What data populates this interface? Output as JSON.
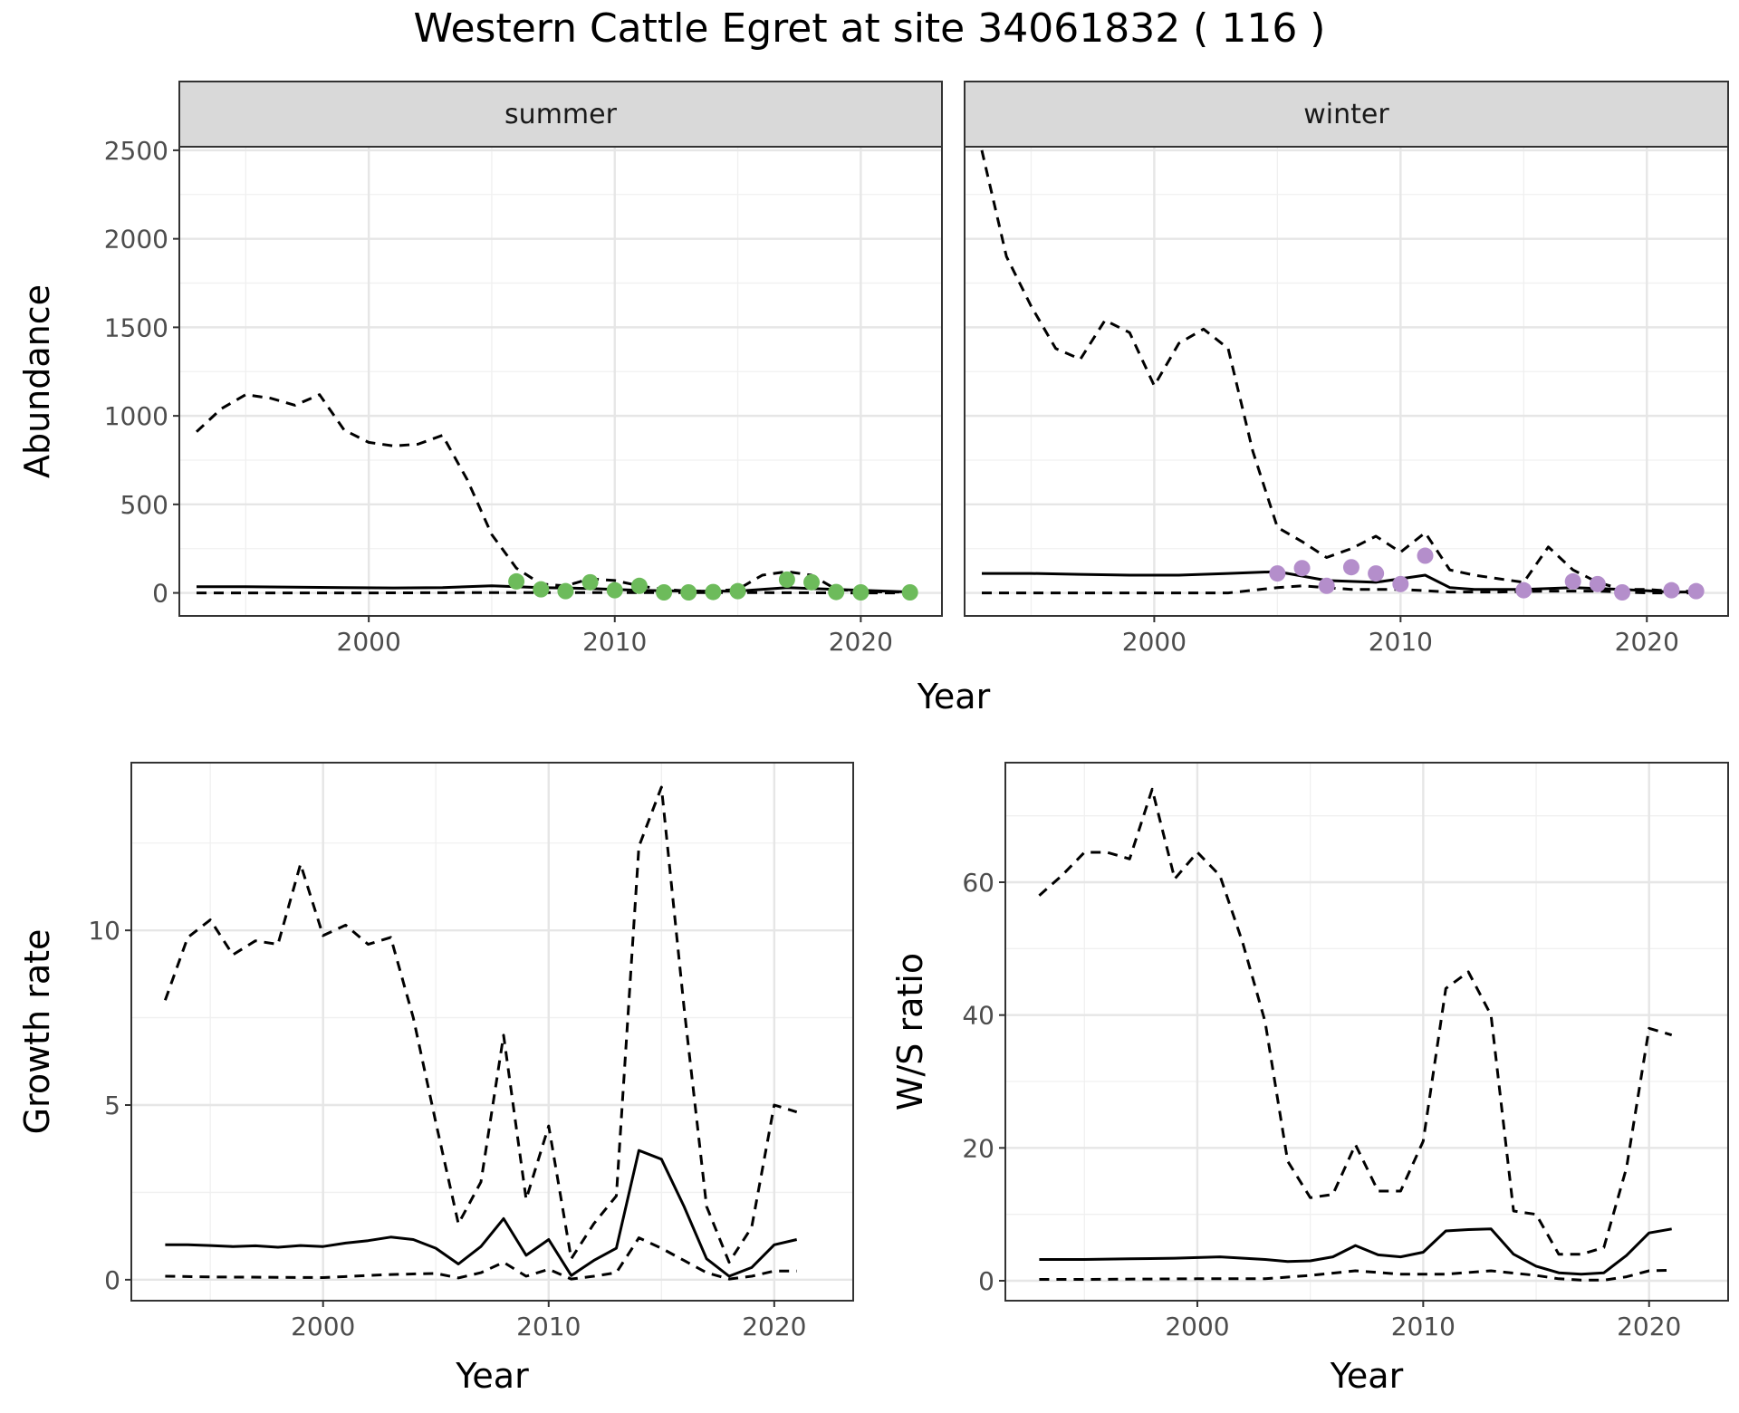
{
  "title": "Western Cattle Egret at site 34061832 ( 116 )",
  "chart_data": [
    {
      "id": "abundance",
      "type": "line",
      "ylabel": "Abundance",
      "xlabel": "Year",
      "xlim": [
        1992.3,
        2023.3
      ],
      "ylim": [
        -130,
        2520
      ],
      "xticks": [
        2000,
        2010,
        2020
      ],
      "yticks": [
        0,
        500,
        1000,
        1500,
        2000,
        2500
      ],
      "panels": [
        {
          "strip": "summer",
          "point_color": "#6dbb5b",
          "median": {
            "x": [
              1993,
              1995,
              1997,
              1999,
              2001,
              2003,
              2005,
              2007,
              2009,
              2011,
              2013,
              2015,
              2017,
              2019,
              2021,
              2022
            ],
            "y": [
              35,
              35,
              32,
              30,
              28,
              30,
              40,
              30,
              25,
              15,
              10,
              10,
              30,
              20,
              10,
              5
            ]
          },
          "upper": {
            "x": [
              1993,
              1994,
              1995,
              1996,
              1997,
              1998,
              1999,
              2000,
              2001,
              2002,
              2003,
              2004,
              2005,
              2006,
              2007,
              2008,
              2009,
              2010,
              2011,
              2012,
              2013,
              2014,
              2015,
              2016,
              2017,
              2018,
              2019,
              2020,
              2021,
              2022
            ],
            "y": [
              910,
              1040,
              1120,
              1100,
              1060,
              1120,
              920,
              850,
              830,
              840,
              890,
              640,
              330,
              140,
              50,
              40,
              80,
              70,
              40,
              20,
              10,
              10,
              20,
              100,
              120,
              100,
              20,
              10,
              5,
              5
            ]
          },
          "lower": {
            "x": [
              1993,
              2000,
              2005,
              2010,
              2015,
              2020,
              2022
            ],
            "y": [
              0,
              0,
              2,
              2,
              2,
              0,
              0
            ]
          },
          "points": {
            "x": [
              2006,
              2007,
              2008,
              2009,
              2010,
              2011,
              2012,
              2013,
              2014,
              2015,
              2017,
              2018,
              2019,
              2020,
              2022
            ],
            "y": [
              65,
              20,
              10,
              60,
              15,
              40,
              3,
              3,
              5,
              10,
              75,
              60,
              5,
              3,
              3
            ]
          }
        },
        {
          "strip": "winter",
          "point_color": "#b48ecb",
          "median": {
            "x": [
              1993,
              1995,
              1997,
              1999,
              2001,
              2003,
              2005,
              2007,
              2009,
              2011,
              2012,
              2013,
              2015,
              2017,
              2019,
              2021,
              2022
            ],
            "y": [
              110,
              110,
              105,
              100,
              100,
              110,
              120,
              70,
              60,
              100,
              30,
              20,
              20,
              30,
              20,
              5,
              5
            ]
          },
          "upper": {
            "x": [
              1993,
              1994,
              1995,
              1996,
              1997,
              1998,
              1999,
              2000,
              2001,
              2002,
              2003,
              2004,
              2005,
              2006,
              2007,
              2008,
              2009,
              2010,
              2011,
              2012,
              2013,
              2014,
              2015,
              2016,
              2017,
              2018,
              2019,
              2020,
              2021,
              2022
            ],
            "y": [
              2500,
              1900,
              1620,
              1380,
              1320,
              1540,
              1470,
              1170,
              1410,
              1490,
              1380,
              800,
              370,
              290,
              200,
              250,
              320,
              230,
              340,
              130,
              100,
              80,
              60,
              260,
              130,
              60,
              20,
              20,
              10,
              10
            ]
          },
          "lower": {
            "x": [
              1993,
              2000,
              2003,
              2005,
              2006,
              2008,
              2010,
              2012,
              2014,
              2016,
              2018,
              2020,
              2022
            ],
            "y": [
              0,
              0,
              0,
              30,
              40,
              20,
              20,
              5,
              5,
              10,
              10,
              0,
              0
            ]
          },
          "points": {
            "x": [
              2005,
              2006,
              2007,
              2008,
              2009,
              2010,
              2011,
              2015,
              2017,
              2018,
              2019,
              2021,
              2022
            ],
            "y": [
              110,
              140,
              40,
              145,
              110,
              50,
              210,
              15,
              65,
              50,
              3,
              15,
              10
            ]
          }
        }
      ]
    },
    {
      "id": "growth",
      "type": "line",
      "ylabel": "Growth rate",
      "xlabel": "Year",
      "xlim": [
        1991.5,
        2023.5
      ],
      "ylim": [
        -0.6,
        14.8
      ],
      "xticks": [
        2000,
        2010,
        2020
      ],
      "yticks": [
        0,
        5,
        10
      ],
      "median": {
        "x": [
          1993,
          1994,
          1995,
          1996,
          1997,
          1998,
          1999,
          2000,
          2001,
          2002,
          2003,
          2004,
          2005,
          2006,
          2007,
          2008,
          2009,
          2010,
          2011,
          2012,
          2013,
          2014,
          2015,
          2016,
          2017,
          2018,
          2019,
          2020,
          2021
        ],
        "y": [
          1.0,
          1.0,
          0.98,
          0.95,
          0.97,
          0.93,
          0.98,
          0.95,
          1.05,
          1.12,
          1.22,
          1.15,
          0.9,
          0.45,
          0.95,
          1.75,
          0.7,
          1.15,
          0.12,
          0.55,
          0.9,
          3.7,
          3.45,
          2.1,
          0.6,
          0.1,
          0.35,
          1.0,
          1.15
        ]
      },
      "upper": {
        "x": [
          1993,
          1994,
          1995,
          1996,
          1997,
          1998,
          1999,
          2000,
          2001,
          2002,
          2003,
          2004,
          2005,
          2006,
          2007,
          2008,
          2009,
          2010,
          2011,
          2012,
          2013,
          2014,
          2015,
          2016,
          2017,
          2018,
          2019,
          2020,
          2021
        ],
        "y": [
          8.0,
          9.8,
          10.3,
          9.3,
          9.7,
          9.6,
          11.9,
          9.85,
          10.15,
          9.6,
          9.8,
          7.5,
          4.5,
          1.6,
          2.8,
          7.0,
          2.3,
          4.4,
          0.6,
          1.6,
          2.4,
          12.4,
          14.1,
          7.8,
          2.1,
          0.5,
          1.5,
          5.0,
          4.8
        ]
      },
      "lower": {
        "x": [
          1993,
          1995,
          2000,
          2003,
          2005,
          2006,
          2007,
          2008,
          2009,
          2010,
          2011,
          2012,
          2013,
          2014,
          2015,
          2016,
          2017,
          2018,
          2019,
          2020,
          2021
        ],
        "y": [
          0.1,
          0.08,
          0.06,
          0.15,
          0.18,
          0.05,
          0.2,
          0.5,
          0.1,
          0.3,
          0.02,
          0.1,
          0.2,
          1.2,
          0.9,
          0.55,
          0.2,
          0.02,
          0.1,
          0.25,
          0.25
        ]
      }
    },
    {
      "id": "ratio",
      "type": "line",
      "ylabel": "W/S ratio",
      "xlabel": "Year",
      "xlim": [
        1991.5,
        2023.5
      ],
      "ylim": [
        -3,
        78
      ],
      "xticks": [
        2000,
        2010,
        2020
      ],
      "yticks": [
        0,
        20,
        40,
        60
      ],
      "median": {
        "x": [
          1993,
          1995,
          1997,
          1999,
          2001,
          2003,
          2004,
          2005,
          2006,
          2007,
          2008,
          2009,
          2010,
          2011,
          2012,
          2013,
          2014,
          2015,
          2016,
          2017,
          2018,
          2019,
          2020,
          2021
        ],
        "y": [
          3.2,
          3.2,
          3.3,
          3.4,
          3.6,
          3.2,
          2.9,
          3.0,
          3.6,
          5.3,
          3.9,
          3.6,
          4.3,
          7.5,
          7.7,
          7.8,
          4.0,
          2.2,
          1.2,
          1.0,
          1.2,
          3.8,
          7.2,
          7.8
        ]
      },
      "upper": {
        "x": [
          1993,
          1994,
          1995,
          1996,
          1997,
          1998,
          1999,
          2000,
          2001,
          2002,
          2003,
          2004,
          2005,
          2006,
          2007,
          2008,
          2009,
          2010,
          2011,
          2012,
          2013,
          2014,
          2015,
          2016,
          2017,
          2018,
          2019,
          2020,
          2021
        ],
        "y": [
          58,
          61,
          64.5,
          64.5,
          63.5,
          74,
          60.5,
          64.5,
          61,
          51,
          39,
          18,
          12.5,
          13,
          20.5,
          13.5,
          13.5,
          21,
          44,
          46.5,
          40,
          10.5,
          10,
          4,
          4,
          5,
          17,
          38,
          37
        ]
      },
      "lower": {
        "x": [
          1993,
          1995,
          2000,
          2003,
          2005,
          2007,
          2009,
          2011,
          2013,
          2015,
          2016,
          2017,
          2018,
          2019,
          2020,
          2021
        ],
        "y": [
          0.2,
          0.2,
          0.3,
          0.3,
          0.8,
          1.5,
          1.0,
          1.0,
          1.5,
          0.8,
          0.3,
          0.1,
          0.1,
          0.6,
          1.5,
          1.6
        ]
      }
    }
  ]
}
